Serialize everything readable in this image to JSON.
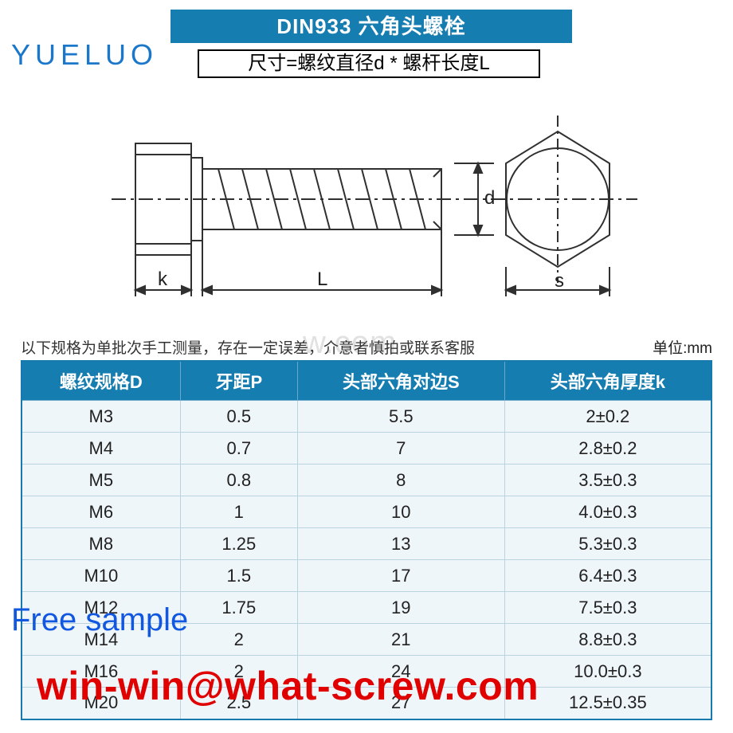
{
  "header": {
    "title": "DIN933 六角头螺栓",
    "title_bg": "#167db0",
    "title_color": "#ffffff",
    "brand": "YUELUO",
    "brand_color": "#1a77c9",
    "formula": "尺寸=螺纹直径d * 螺杆长度L"
  },
  "diagram": {
    "labels": {
      "k": "k",
      "L": "L",
      "d": "d",
      "s": "s"
    },
    "stroke": "#303030"
  },
  "note": {
    "text": "以下规格为单批次手工测量，存在一定误差，介意者慎拍或联系客服",
    "unit_label": "单位:mm"
  },
  "table": {
    "header_bg": "#167db0",
    "header_color": "#ffffff",
    "row_bg": "#eff6fa",
    "border_color": "#1779ac",
    "cell_border": "#b9d3e2",
    "col_widths_pct": [
      23,
      17,
      30,
      30
    ],
    "columns": [
      "螺纹规格D",
      "牙距P",
      "头部六角对边S",
      "头部六角厚度k"
    ],
    "rows": [
      [
        "M3",
        "0.5",
        "5.5",
        "2±0.2"
      ],
      [
        "M4",
        "0.7",
        "7",
        "2.8±0.2"
      ],
      [
        "M5",
        "0.8",
        "8",
        "3.5±0.3"
      ],
      [
        "M6",
        "1",
        "10",
        "4.0±0.3"
      ],
      [
        "M8",
        "1.25",
        "13",
        "5.3±0.3"
      ],
      [
        "M10",
        "1.5",
        "17",
        "6.4±0.3"
      ],
      [
        "M12",
        "1.75",
        "19",
        "7.5±0.3"
      ],
      [
        "M14",
        "2",
        "21",
        "8.8±0.3"
      ],
      [
        "M16",
        "2",
        "24",
        "10.0±0.3"
      ],
      [
        "M20",
        "2.5",
        "27",
        "12.5±0.35"
      ]
    ]
  },
  "overlays": {
    "watermark_faint": "w.com",
    "free_sample": "Free sample",
    "contact": "win-win@what-screw.com",
    "free_sample_color": "#1257e0",
    "contact_color": "#e00000"
  }
}
